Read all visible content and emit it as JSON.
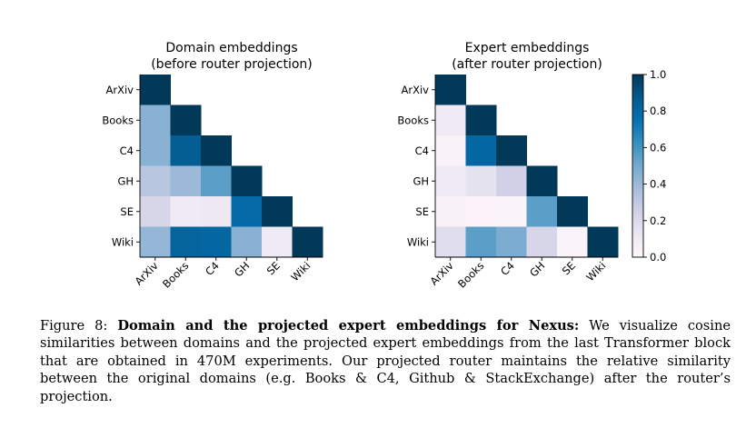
{
  "chart_data": [
    {
      "type": "heatmap",
      "title": "Domain embeddings",
      "subtitle": "(before router projection)",
      "xlabel": "",
      "ylabel": "",
      "categories": [
        "ArXiv",
        "Books",
        "C4",
        "GH",
        "SE",
        "Wiki"
      ],
      "lower_triangular": true,
      "values": [
        [
          1.0
        ],
        [
          0.45,
          1.0
        ],
        [
          0.45,
          0.85,
          1.0
        ],
        [
          0.32,
          0.4,
          0.55,
          1.0
        ],
        [
          0.22,
          0.1,
          0.12,
          0.78,
          1.0
        ],
        [
          0.42,
          0.82,
          0.8,
          0.45,
          0.1,
          1.0
        ]
      ]
    },
    {
      "type": "heatmap",
      "title": "Expert embeddings",
      "subtitle": "(after router projection)",
      "xlabel": "",
      "ylabel": "",
      "categories": [
        "ArXiv",
        "Books",
        "C4",
        "GH",
        "SE",
        "Wiki"
      ],
      "lower_triangular": true,
      "values": [
        [
          1.0
        ],
        [
          0.1,
          1.0
        ],
        [
          0.04,
          0.8,
          1.0
        ],
        [
          0.1,
          0.15,
          0.25,
          1.0
        ],
        [
          0.05,
          0.02,
          0.03,
          0.55,
          1.0
        ],
        [
          0.18,
          0.55,
          0.48,
          0.22,
          0.03,
          1.0
        ]
      ]
    }
  ],
  "colorbar": {
    "min": 0.0,
    "max": 1.0,
    "ticks": [
      "0.0",
      "0.2",
      "0.4",
      "0.6",
      "0.8",
      "1.0"
    ],
    "colormap": [
      "#fff7fb",
      "#ece7f2",
      "#d0d1e6",
      "#a6bddb",
      "#74a9cf",
      "#3690c0",
      "#0570b0",
      "#045a8d",
      "#023858"
    ]
  },
  "caption": {
    "label": "Figure 8:",
    "bold": "Domain and the projected expert embeddings for Nexus:",
    "text": "We visualize cosine similarities between domains and the projected expert embeddings from the last Transformer block that are obtained in 470M experiments.  Our projected router maintains the relative similarity between the original domains (e.g.  Books & C4, Github & StackExchange) after the router’s projection."
  }
}
